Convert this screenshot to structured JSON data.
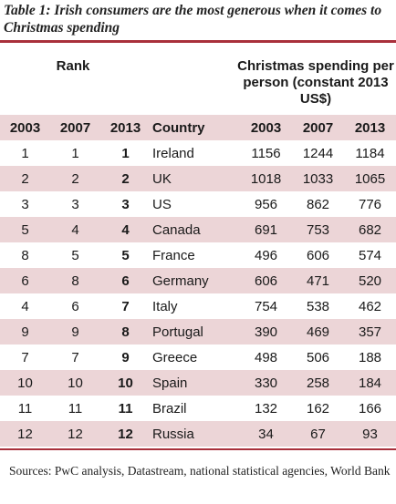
{
  "title": "Table 1: Irish consumers are the most generous when it comes to Christmas spending",
  "header": {
    "rank_label": "Rank",
    "spending_label": "Christmas spending per person (constant 2013 US$)"
  },
  "columns": [
    "2003",
    "2007",
    "2013",
    "Country",
    "2003",
    "2007",
    "2013"
  ],
  "rows": [
    [
      "1",
      "1",
      "1",
      "Ireland",
      "1156",
      "1244",
      "1184"
    ],
    [
      "2",
      "2",
      "2",
      "UK",
      "1018",
      "1033",
      "1065"
    ],
    [
      "3",
      "3",
      "3",
      "US",
      "956",
      "862",
      "776"
    ],
    [
      "5",
      "4",
      "4",
      "Canada",
      "691",
      "753",
      "682"
    ],
    [
      "8",
      "5",
      "5",
      "France",
      "496",
      "606",
      "574"
    ],
    [
      "6",
      "8",
      "6",
      "Germany",
      "606",
      "471",
      "520"
    ],
    [
      "4",
      "6",
      "7",
      "Italy",
      "754",
      "538",
      "462"
    ],
    [
      "9",
      "9",
      "8",
      "Portugal",
      "390",
      "469",
      "357"
    ],
    [
      "7",
      "7",
      "9",
      "Greece",
      "498",
      "506",
      "188"
    ],
    [
      "10",
      "10",
      "10",
      "Spain",
      "330",
      "258",
      "184"
    ],
    [
      "11",
      "11",
      "11",
      "Brazil",
      "132",
      "162",
      "166"
    ],
    [
      "12",
      "12",
      "12",
      "Russia",
      "34",
      "67",
      "93"
    ]
  ],
  "source": "Sources: PwC analysis, Datastream, national statistical agencies, World Bank",
  "colors": {
    "accent": "#a9303b",
    "row_shade": "#ecd5d7"
  }
}
